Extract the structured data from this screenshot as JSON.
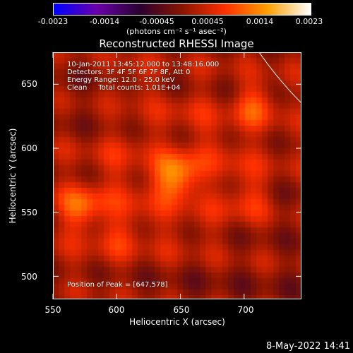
{
  "colorbar": {
    "ticks": [
      "-0.0023",
      "-0.0014",
      "-0.00045",
      "0.00045",
      "0.0014",
      "0.0023"
    ],
    "units": "(photons cm⁻² s⁻¹ asec⁻²)",
    "colors": [
      "#0000ff",
      "#6a00aa",
      "#2a0030",
      "#8a1500",
      "#ff3000",
      "#ffa000",
      "#ffffff"
    ]
  },
  "chart_data": {
    "type": "heatmap",
    "title": "Reconstructed RHESSI Image",
    "xlabel": "Heliocentric X (arcsec)",
    "ylabel": "Heliocentric Y (arcsec)",
    "xlim": [
      550,
      745
    ],
    "ylim": [
      482,
      675
    ],
    "xticks": [
      "550",
      "600",
      "650",
      "700"
    ],
    "yticks": [
      "500",
      "550",
      "600",
      "650"
    ],
    "zlim": [
      -0.0023,
      0.0023
    ],
    "peak": [
      647,
      578
    ],
    "sources": [
      {
        "x": 647,
        "y": 578,
        "amp": 0.0023
      },
      {
        "x": 572,
        "y": 553,
        "amp": 0.0016
      },
      {
        "x": 709,
        "y": 634,
        "amp": 0.0014
      },
      {
        "x": 598,
        "y": 531,
        "amp": 0.0006
      },
      {
        "x": 705,
        "y": 560,
        "amp": 0.0008
      },
      {
        "x": 615,
        "y": 655,
        "amp": 0.0007
      }
    ],
    "annotations": [
      "10-Jan-2011 13:45:12.000 to 13:48:16.000",
      "Detectors: 3F 4F 5F 6F 7F 8F, Att 0",
      "Energy Range: 12.0 - 25.0 keV",
      "Clean     Total counts: 1.01E+04"
    ],
    "peak_label": "Position of Peak = [647,578]"
  },
  "footer": "8-May-2022 14:41"
}
